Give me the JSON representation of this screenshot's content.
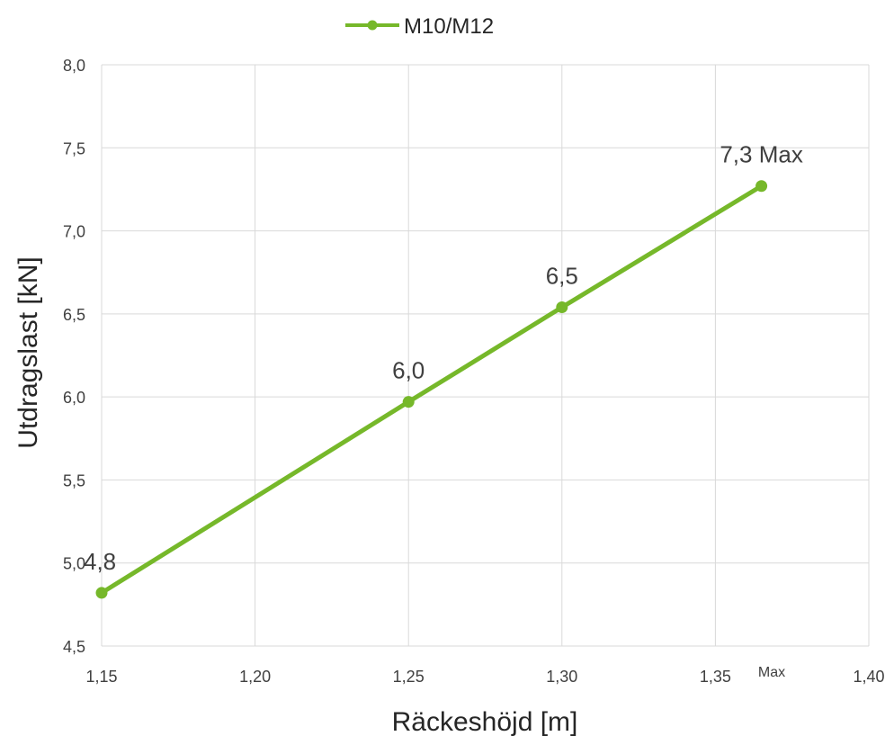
{
  "chart_data": {
    "type": "line",
    "xlabel": "Räckeshöjd [m]",
    "ylabel": "Utdragslast [kN]",
    "xlim": [
      1.15,
      1.4
    ],
    "ylim": [
      4.5,
      8.0
    ],
    "x_ticks": [
      "1,15",
      "1,20",
      "1,25",
      "1,30",
      "1,35",
      "1,40"
    ],
    "x_tick_values": [
      1.15,
      1.2,
      1.25,
      1.3,
      1.35,
      1.4
    ],
    "y_ticks": [
      "4,5",
      "5,0",
      "5,5",
      "6,0",
      "6,5",
      "7,0",
      "7,5",
      "8,0"
    ],
    "y_tick_values": [
      4.5,
      5.0,
      5.5,
      6.0,
      6.5,
      7.0,
      7.5,
      8.0
    ],
    "grid": true,
    "legend_position": "top",
    "series": [
      {
        "name": "M10/M12",
        "color": "#76b82a",
        "x": [
          1.15,
          1.25,
          1.3,
          1.365
        ],
        "y": [
          4.82,
          5.97,
          6.54,
          7.27
        ],
        "labels": [
          "4,8",
          "6,0",
          "6,5",
          "7,3 Max"
        ]
      }
    ],
    "annotations": [
      {
        "text": "Max",
        "x": 1.365
      }
    ]
  }
}
